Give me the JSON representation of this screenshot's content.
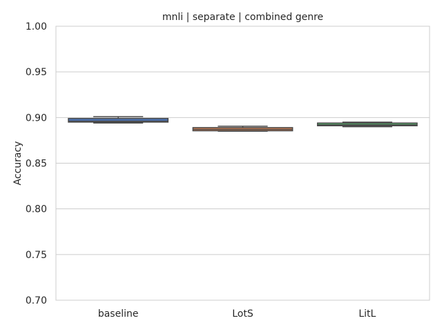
{
  "chart_data": {
    "type": "box",
    "title": "mnli | separate | combined genre",
    "xlabel": "",
    "ylabel": "Accuracy",
    "ylim": [
      0.7,
      1.0
    ],
    "yticks": [
      "0.70",
      "0.75",
      "0.80",
      "0.85",
      "0.90",
      "0.95",
      "1.00"
    ],
    "categories": [
      "baseline",
      "LotS",
      "LitL"
    ],
    "grid": "horizontal",
    "legend": "none",
    "boxes": [
      {
        "category": "baseline",
        "whisker_low": 0.894,
        "q1": 0.895,
        "median": 0.896,
        "q3": 0.899,
        "whisker_high": 0.901,
        "box_color": "#4c72b0"
      },
      {
        "category": "LotS",
        "whisker_low": 0.885,
        "q1": 0.8855,
        "median": 0.887,
        "q3": 0.889,
        "whisker_high": 0.8905,
        "box_color": "#dd8452"
      },
      {
        "category": "LitL",
        "whisker_low": 0.89,
        "q1": 0.891,
        "median": 0.892,
        "q3": 0.894,
        "whisker_high": 0.895,
        "box_color": "#55a868"
      }
    ],
    "colors": {
      "line": "#4a4a4a",
      "grid": "#cccccc",
      "spine": "#cccccc",
      "text": "#262626"
    }
  }
}
